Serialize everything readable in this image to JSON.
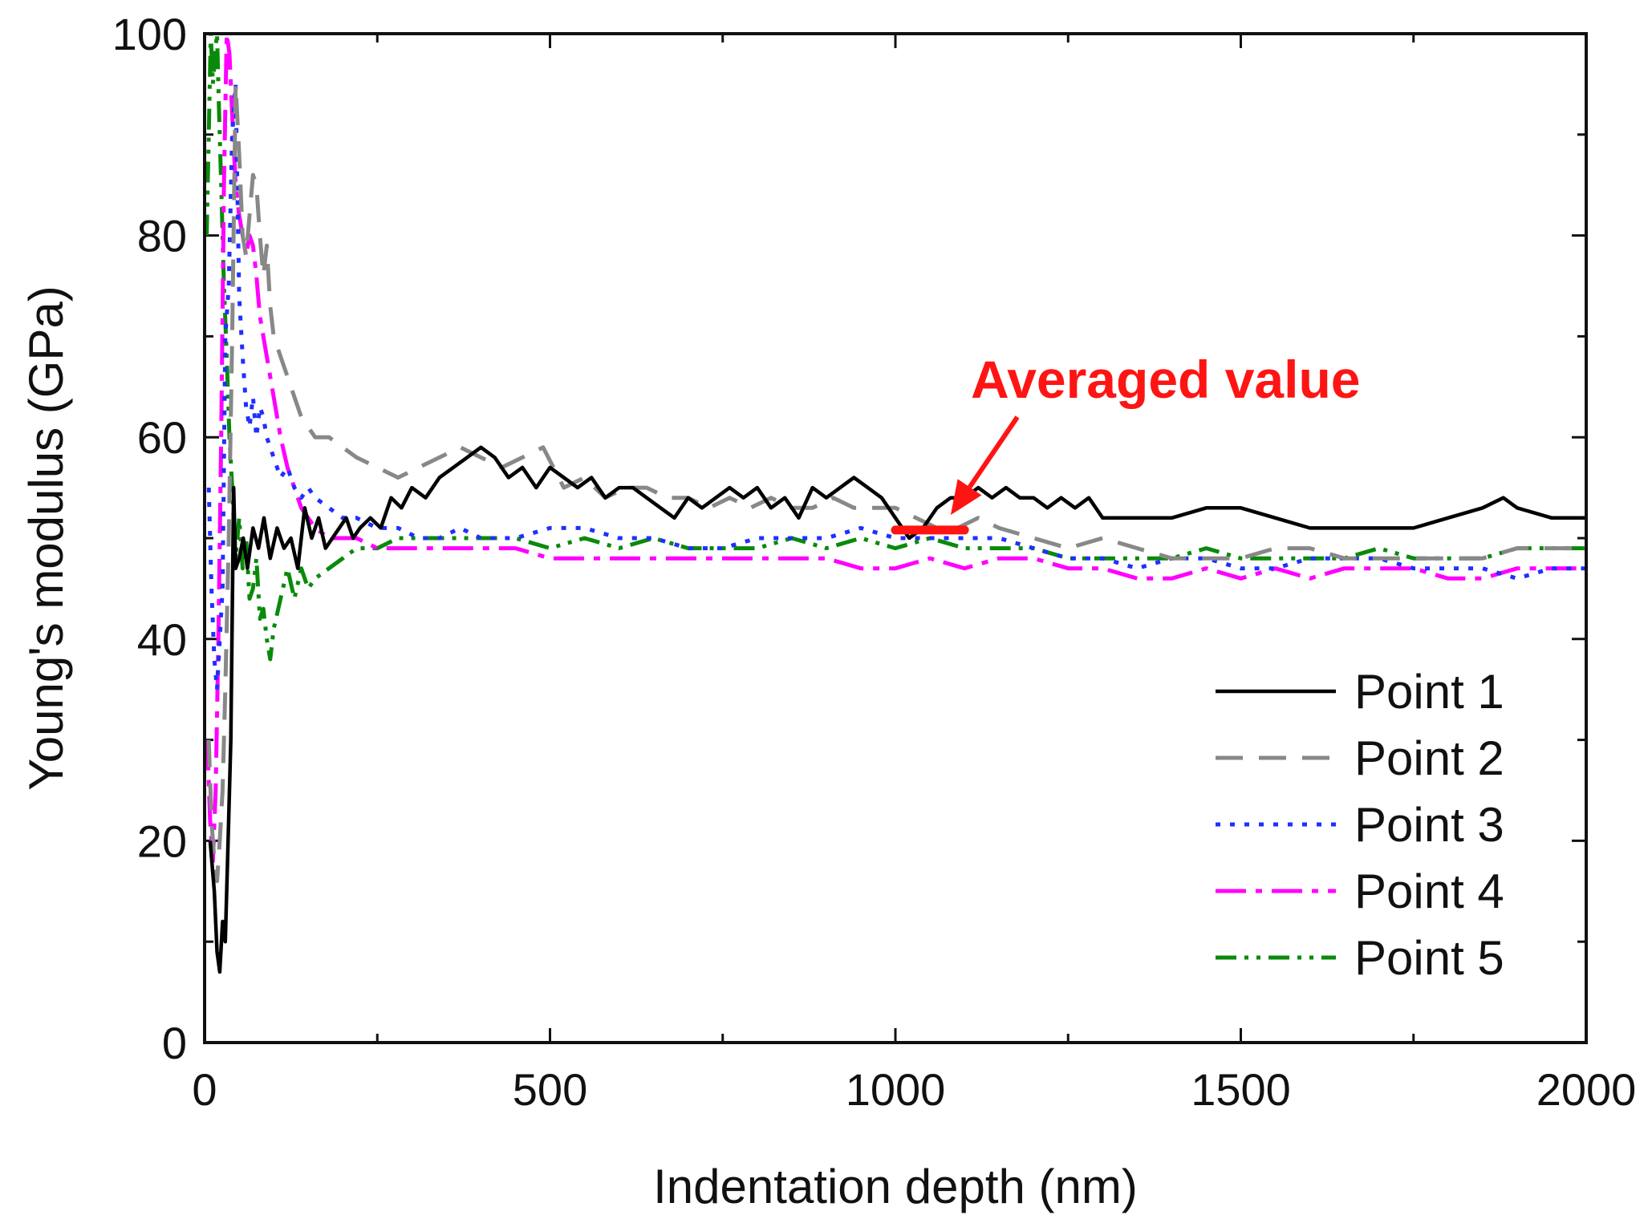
{
  "chart_data": {
    "type": "line",
    "title": "",
    "xlabel": "Indentation depth (nm)",
    "ylabel": "Young's modulus (GPa)",
    "xlim": [
      0,
      2000
    ],
    "ylim": [
      0,
      100
    ],
    "xticks": [
      0,
      500,
      1000,
      1500,
      2000
    ],
    "yticks": [
      0,
      20,
      40,
      60,
      80,
      100
    ],
    "legend_position": "lower-right",
    "annotation": {
      "text": "Averaged value",
      "color": "#ff1414",
      "segment_x": [
        1000,
        1100
      ],
      "segment_y": 50.8,
      "arrow_to": [
        1080,
        51.5
      ]
    },
    "series": [
      {
        "name": "Point 1",
        "color": "#000000",
        "dash": "",
        "x": [
          8,
          14,
          18,
          22,
          26,
          30,
          34,
          38,
          42,
          45,
          50,
          56,
          62,
          70,
          78,
          86,
          95,
          105,
          115,
          125,
          135,
          145,
          155,
          165,
          175,
          185,
          195,
          205,
          215,
          225,
          240,
          255,
          270,
          285,
          300,
          320,
          340,
          360,
          380,
          400,
          420,
          440,
          460,
          480,
          500,
          520,
          540,
          560,
          580,
          600,
          620,
          640,
          660,
          680,
          700,
          720,
          740,
          760,
          780,
          800,
          820,
          840,
          860,
          880,
          900,
          920,
          940,
          960,
          980,
          1000,
          1020,
          1040,
          1060,
          1080,
          1100,
          1120,
          1140,
          1160,
          1180,
          1200,
          1220,
          1240,
          1260,
          1280,
          1300,
          1350,
          1400,
          1450,
          1500,
          1550,
          1600,
          1650,
          1700,
          1750,
          1800,
          1850,
          1880,
          1900,
          1950,
          2000
        ],
        "y": [
          20,
          15,
          9,
          7,
          12,
          10,
          20,
          30,
          55,
          47,
          48,
          50,
          47,
          51,
          49,
          52,
          48,
          51,
          49,
          50,
          47,
          53,
          50,
          52,
          49,
          50,
          51,
          52,
          50,
          51,
          52,
          51,
          54,
          53,
          55,
          54,
          56,
          57,
          58,
          59,
          58,
          56,
          57,
          55,
          57,
          56,
          55,
          56,
          54,
          55,
          55,
          54,
          53,
          52,
          54,
          53,
          54,
          55,
          54,
          55,
          53,
          54,
          52,
          55,
          54,
          55,
          56,
          55,
          54,
          52,
          50,
          51,
          53,
          54,
          54,
          55,
          54,
          55,
          54,
          54,
          53,
          54,
          53,
          54,
          52,
          52,
          52,
          53,
          53,
          52,
          51,
          51,
          51,
          51,
          52,
          53,
          54,
          53,
          52,
          52
        ]
      },
      {
        "name": "Point 2",
        "color": "#888888",
        "dash": "34,20",
        "x": [
          6,
          10,
          14,
          18,
          22,
          26,
          30,
          35,
          40,
          45,
          50,
          55,
          60,
          65,
          70,
          75,
          80,
          85,
          90,
          95,
          100,
          110,
          120,
          130,
          140,
          150,
          160,
          180,
          200,
          220,
          250,
          280,
          310,
          340,
          370,
          400,
          430,
          460,
          490,
          520,
          550,
          580,
          610,
          640,
          670,
          700,
          730,
          760,
          790,
          820,
          850,
          880,
          910,
          940,
          970,
          1000,
          1030,
          1060,
          1090,
          1120,
          1150,
          1200,
          1250,
          1300,
          1350,
          1400,
          1450,
          1500,
          1550,
          1600,
          1650,
          1700,
          1750,
          1800,
          1850,
          1900,
          1950,
          2000
        ],
        "y": [
          30,
          22,
          18,
          16,
          20,
          25,
          35,
          50,
          70,
          95,
          88,
          80,
          78,
          82,
          86,
          85,
          80,
          76,
          79,
          73,
          70,
          68,
          66,
          64,
          62,
          61,
          60,
          60,
          59,
          58,
          57,
          56,
          57,
          58,
          59,
          58,
          57,
          58,
          59,
          55,
          56,
          54,
          55,
          55,
          54,
          54,
          53,
          54,
          53,
          54,
          53,
          53,
          54,
          53,
          53,
          53,
          52,
          51,
          51,
          52,
          51,
          50,
          49,
          50,
          49,
          48,
          48,
          48,
          49,
          49,
          48,
          48,
          48,
          48,
          48,
          49,
          49,
          49
        ]
      },
      {
        "name": "Point 3",
        "color": "#1f2fff",
        "dash": "6,12",
        "x": [
          6,
          10,
          14,
          18,
          22,
          26,
          30,
          35,
          40,
          45,
          50,
          55,
          60,
          65,
          70,
          75,
          80,
          85,
          90,
          100,
          110,
          120,
          130,
          140,
          150,
          160,
          180,
          200,
          220,
          250,
          280,
          310,
          340,
          370,
          400,
          450,
          500,
          550,
          600,
          650,
          700,
          750,
          800,
          850,
          900,
          950,
          1000,
          1050,
          1100,
          1150,
          1200,
          1250,
          1300,
          1350,
          1400,
          1450,
          1500,
          1550,
          1600,
          1650,
          1700,
          1750,
          1800,
          1850,
          1900,
          1950,
          2000
        ],
        "y": [
          55,
          45,
          38,
          35,
          40,
          45,
          70,
          75,
          90,
          95,
          74,
          68,
          63,
          61,
          64,
          60,
          63,
          62,
          60,
          58,
          56,
          57,
          55,
          54,
          55,
          54,
          53,
          52,
          52,
          51,
          51,
          50,
          50,
          51,
          50,
          50,
          51,
          51,
          50,
          50,
          49,
          49,
          50,
          50,
          50,
          51,
          50,
          50,
          50,
          50,
          49,
          48,
          48,
          47,
          48,
          48,
          47,
          47,
          48,
          48,
          48,
          47,
          47,
          47,
          46,
          47,
          47
        ]
      },
      {
        "name": "Point 4",
        "color": "#ff00ff",
        "dash": "38,12,8,12",
        "x": [
          4,
          8,
          12,
          16,
          20,
          24,
          28,
          32,
          36,
          40,
          45,
          50,
          55,
          60,
          65,
          70,
          75,
          80,
          85,
          90,
          95,
          100,
          110,
          120,
          130,
          140,
          150,
          160,
          180,
          200,
          220,
          250,
          280,
          310,
          340,
          370,
          400,
          450,
          500,
          550,
          600,
          650,
          700,
          750,
          800,
          850,
          900,
          950,
          1000,
          1050,
          1100,
          1150,
          1200,
          1250,
          1300,
          1350,
          1400,
          1450,
          1500,
          1550,
          1600,
          1650,
          1700,
          1750,
          1800,
          1850,
          1900,
          1950,
          2000
        ],
        "y": [
          30,
          22,
          18,
          25,
          40,
          60,
          85,
          100,
          98,
          92,
          85,
          82,
          80,
          78,
          80,
          79,
          76,
          72,
          70,
          68,
          66,
          64,
          60,
          57,
          55,
          53,
          52,
          51,
          50,
          50,
          50,
          49,
          49,
          49,
          49,
          49,
          49,
          49,
          48,
          48,
          48,
          48,
          48,
          48,
          48,
          48,
          48,
          47,
          47,
          48,
          47,
          48,
          48,
          47,
          47,
          46,
          46,
          47,
          46,
          47,
          46,
          47,
          47,
          47,
          46,
          46,
          47,
          47,
          47
        ]
      },
      {
        "name": "Point 5",
        "color": "#0a8a0a",
        "dash": "26,10,5,10,5,10",
        "x": [
          3,
          6,
          9,
          12,
          15,
          18,
          21,
          24,
          28,
          32,
          36,
          40,
          45,
          50,
          55,
          60,
          65,
          70,
          75,
          80,
          85,
          90,
          95,
          100,
          110,
          120,
          130,
          140,
          150,
          160,
          180,
          200,
          220,
          250,
          280,
          310,
          340,
          370,
          400,
          450,
          500,
          550,
          600,
          650,
          700,
          750,
          800,
          850,
          900,
          950,
          1000,
          1050,
          1100,
          1150,
          1200,
          1250,
          1300,
          1350,
          1400,
          1450,
          1500,
          1550,
          1600,
          1650,
          1700,
          1750,
          1800,
          1850,
          1900,
          1950,
          2000
        ],
        "y": [
          80,
          90,
          100,
          95,
          98,
          100,
          92,
          85,
          75,
          68,
          60,
          55,
          48,
          52,
          47,
          50,
          44,
          45,
          48,
          42,
          43,
          40,
          38,
          41,
          44,
          47,
          44,
          47,
          45,
          46,
          47,
          48,
          49,
          49,
          50,
          50,
          50,
          50,
          50,
          50,
          49,
          50,
          49,
          50,
          49,
          49,
          49,
          50,
          49,
          50,
          49,
          50,
          49,
          49,
          49,
          48,
          48,
          48,
          48,
          49,
          48,
          48,
          48,
          48,
          49,
          48,
          48,
          48,
          49,
          49,
          49
        ]
      }
    ]
  }
}
